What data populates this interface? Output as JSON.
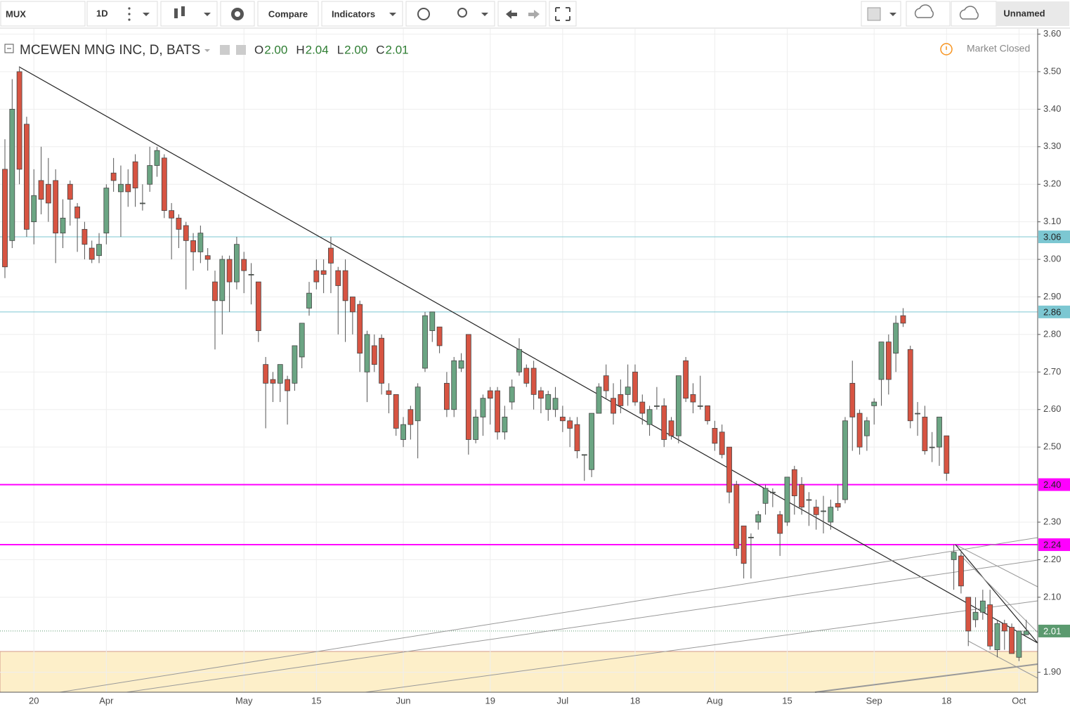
{
  "toolbar": {
    "symbol": "MUX",
    "interval": "1D",
    "compare": "Compare",
    "indicators": "Indicators",
    "layout": "Unnamed"
  },
  "chart_data": {
    "type": "candlestick",
    "title": "MCEWEN MNG INC, D, BATS",
    "ohlc_legend": [
      {
        "key": "O",
        "value": "2.00"
      },
      {
        "key": "H",
        "value": "2.04"
      },
      {
        "key": "L",
        "value": "2.00"
      },
      {
        "key": "C",
        "value": "2.01"
      }
    ],
    "status": "Market Closed",
    "up_color": "#6ba583",
    "down_color": "#d75442",
    "categories": [
      null,
      null,
      null,
      null,
      "20",
      null,
      null,
      null,
      null,
      null,
      null,
      null,
      null,
      null,
      "Apr",
      null,
      null,
      null,
      null,
      null,
      null,
      null,
      null,
      null,
      null,
      null,
      null,
      null,
      null,
      null,
      null,
      null,
      null,
      "May",
      null,
      null,
      null,
      null,
      null,
      null,
      null,
      null,
      null,
      "15",
      null,
      null,
      null,
      null,
      null,
      null,
      null,
      null,
      null,
      null,
      null,
      "Jun",
      null,
      null,
      null,
      null,
      null,
      null,
      null,
      null,
      null,
      null,
      null,
      "19",
      null,
      null,
      null,
      null,
      null,
      null,
      null,
      null,
      null,
      "Jul",
      null,
      null,
      null,
      null,
      null,
      null,
      null,
      null,
      null,
      "18",
      null,
      null,
      null,
      null,
      null,
      null,
      null,
      null,
      null,
      null,
      "Aug",
      null,
      null,
      null,
      null,
      null,
      null,
      null,
      null,
      null,
      "15",
      null,
      null,
      null,
      null,
      null,
      null,
      null,
      null,
      null,
      null,
      null,
      "Sep",
      null,
      null,
      null,
      null,
      null,
      null,
      null,
      null,
      null,
      "18",
      null,
      null,
      null,
      null,
      null,
      null,
      null,
      null,
      null,
      "Oct",
      null
    ],
    "open": [
      3.24,
      3.05,
      3.5,
      3.36,
      3.1,
      3.21,
      3.2,
      3.21,
      3.07,
      3.2,
      3.14,
      3.08,
      3.03,
      3.01,
      3.07,
      3.23,
      3.18,
      3.2,
      3.26,
      3.15,
      3.2,
      3.25,
      3.27,
      3.13,
      3.11,
      3.09,
      3.05,
      3.02,
      3.01,
      2.94,
      2.89,
      3.0,
      2.94,
      3.0,
      2.96,
      2.94,
      2.72,
      2.68,
      2.67,
      2.68,
      2.67,
      2.74,
      2.87,
      2.97,
      2.97,
      3.03,
      2.97,
      2.97,
      2.9,
      2.88,
      2.7,
      2.77,
      2.79,
      2.65,
      2.64,
      2.52,
      2.6,
      2.57,
      2.71,
      2.81,
      2.82,
      2.67,
      2.6,
      2.71,
      2.8,
      2.52,
      2.58,
      2.65,
      2.65,
      2.54,
      2.62,
      2.7,
      2.71,
      2.71,
      2.65,
      2.6,
      2.6,
      2.58,
      2.57,
      2.56,
      2.48,
      2.44,
      2.59,
      2.69,
      2.63,
      2.64,
      2.64,
      2.7,
      2.62,
      2.56,
      2.61,
      2.61,
      2.57,
      2.53,
      2.73,
      2.64,
      2.61,
      2.61,
      2.55,
      2.54,
      2.5,
      2.4,
      2.29,
      2.26,
      2.3,
      2.35,
      2.38,
      2.32,
      2.3,
      2.44,
      2.4,
      2.36,
      2.34,
      2.33,
      2.3,
      2.35,
      2.36,
      2.67,
      2.59,
      2.53,
      2.61,
      2.68,
      2.78,
      2.75,
      2.85,
      2.76,
      2.59,
      2.58,
      2.5,
      2.5,
      2.53,
      2.2,
      2.21,
      2.1,
      2.04,
      2.06,
      2.08,
      1.96,
      2.03,
      2.02,
      1.94,
      2.0
    ],
    "high": [
      3.32,
      3.48,
      3.51,
      3.38,
      3.24,
      3.3,
      3.27,
      3.24,
      3.16,
      3.21,
      3.15,
      3.1,
      3.05,
      3.07,
      3.2,
      3.27,
      3.25,
      3.24,
      3.28,
      3.2,
      3.3,
      3.3,
      3.28,
      3.15,
      3.12,
      3.1,
      3.07,
      3.09,
      3.03,
      2.97,
      3.01,
      3.01,
      3.06,
      3.02,
      2.99,
      2.94,
      2.74,
      2.7,
      2.72,
      2.69,
      2.77,
      2.83,
      2.94,
      3.0,
      3.0,
      3.06,
      2.98,
      3.0,
      2.9,
      2.89,
      2.81,
      2.8,
      2.8,
      2.67,
      2.64,
      2.58,
      2.61,
      2.67,
      2.86,
      2.86,
      2.82,
      2.7,
      2.74,
      2.75,
      2.8,
      2.6,
      2.64,
      2.66,
      2.66,
      2.61,
      2.68,
      2.79,
      2.72,
      2.73,
      2.66,
      2.65,
      2.66,
      2.61,
      2.58,
      2.58,
      2.48,
      2.59,
      2.67,
      2.72,
      2.67,
      2.68,
      2.72,
      2.72,
      2.64,
      2.61,
      2.66,
      2.63,
      2.58,
      2.69,
      2.74,
      2.67,
      2.69,
      2.61,
      2.57,
      2.56,
      2.5,
      2.41,
      2.29,
      2.27,
      2.33,
      2.4,
      2.39,
      2.33,
      2.42,
      2.45,
      2.42,
      2.38,
      2.36,
      2.37,
      2.36,
      2.4,
      2.58,
      2.73,
      2.6,
      2.58,
      2.63,
      2.78,
      2.8,
      2.85,
      2.87,
      2.77,
      2.62,
      2.61,
      2.54,
      2.58,
      2.53,
      2.24,
      2.22,
      2.1,
      2.1,
      2.12,
      2.12,
      2.04,
      2.04,
      2.03,
      2.01,
      2.04
    ],
    "low": [
      2.95,
      3.03,
      3.2,
      3.06,
      3.04,
      3.12,
      3.1,
      2.99,
      3.03,
      3.09,
      3.02,
      3.0,
      2.99,
      2.99,
      3.04,
      3.18,
      3.06,
      3.14,
      3.14,
      3.13,
      3.18,
      3.22,
      3.11,
      3.0,
      3.03,
      2.92,
      2.97,
      2.99,
      2.97,
      2.76,
      2.8,
      2.86,
      2.92,
      2.91,
      2.88,
      2.78,
      2.55,
      2.62,
      2.62,
      2.56,
      2.65,
      2.71,
      2.85,
      2.92,
      2.91,
      2.91,
      2.8,
      2.78,
      2.8,
      2.7,
      2.62,
      2.7,
      2.64,
      2.59,
      2.53,
      2.5,
      2.52,
      2.47,
      2.7,
      2.78,
      2.75,
      2.58,
      2.58,
      2.7,
      2.48,
      2.51,
      2.53,
      2.56,
      2.52,
      2.52,
      2.6,
      2.69,
      2.66,
      2.6,
      2.59,
      2.57,
      2.58,
      2.54,
      2.5,
      2.47,
      2.41,
      2.42,
      2.59,
      2.63,
      2.56,
      2.59,
      2.61,
      2.61,
      2.56,
      2.53,
      2.6,
      2.5,
      2.52,
      2.51,
      2.62,
      2.59,
      2.6,
      2.56,
      2.49,
      2.47,
      2.35,
      2.21,
      2.15,
      2.15,
      2.28,
      2.32,
      2.34,
      2.21,
      2.29,
      2.32,
      2.32,
      2.29,
      2.28,
      2.27,
      2.28,
      2.33,
      2.35,
      2.49,
      2.48,
      2.49,
      2.56,
      2.61,
      2.64,
      2.7,
      2.82,
      2.55,
      2.53,
      2.48,
      2.46,
      2.45,
      2.41,
      2.12,
      2.11,
      1.97,
      2.02,
      2.04,
      1.96,
      1.94,
      1.96,
      1.95,
      1.93,
      2.0
    ],
    "close": [
      2.98,
      3.4,
      3.24,
      3.08,
      3.17,
      3.16,
      3.15,
      3.07,
      3.11,
      3.16,
      3.11,
      3.04,
      3.0,
      3.04,
      3.19,
      3.21,
      3.2,
      3.18,
      3.19,
      3.15,
      3.25,
      3.29,
      3.13,
      3.11,
      3.08,
      3.05,
      3.02,
      3.07,
      3.0,
      2.89,
      3.0,
      2.94,
      3.04,
      2.97,
      2.96,
      2.81,
      2.67,
      2.67,
      2.72,
      2.65,
      2.77,
      2.83,
      2.91,
      2.94,
      2.96,
      2.99,
      2.93,
      2.89,
      2.86,
      2.75,
      2.8,
      2.72,
      2.67,
      2.64,
      2.55,
      2.56,
      2.56,
      2.66,
      2.85,
      2.86,
      2.77,
      2.6,
      2.73,
      2.73,
      2.52,
      2.58,
      2.63,
      2.63,
      2.54,
      2.58,
      2.66,
      2.76,
      2.67,
      2.64,
      2.63,
      2.64,
      2.63,
      2.57,
      2.55,
      2.49,
      2.48,
      2.59,
      2.66,
      2.65,
      2.59,
      2.61,
      2.66,
      2.62,
      2.59,
      2.6,
      2.61,
      2.52,
      2.53,
      2.69,
      2.63,
      2.62,
      2.61,
      2.57,
      2.51,
      2.48,
      2.38,
      2.23,
      2.19,
      2.26,
      2.32,
      2.39,
      2.38,
      2.27,
      2.42,
      2.37,
      2.34,
      2.36,
      2.32,
      2.33,
      2.34,
      2.34,
      2.57,
      2.58,
      2.5,
      2.57,
      2.62,
      2.78,
      2.68,
      2.83,
      2.83,
      2.57,
      2.59,
      2.49,
      2.5,
      2.58,
      2.43,
      2.22,
      2.13,
      2.01,
      2.06,
      2.09,
      1.97,
      2.03,
      2.01,
      1.95,
      2.01,
      2.01
    ],
    "ylim": [
      1.847,
      3.616
    ],
    "yticks": [
      {
        "value": 3.6,
        "label": "3.60"
      },
      {
        "value": 3.5,
        "label": "3.50"
      },
      {
        "value": 3.4,
        "label": "3.40"
      },
      {
        "value": 3.3,
        "label": "3.30"
      },
      {
        "value": 3.2,
        "label": "3.20"
      },
      {
        "value": 3.1,
        "label": "3.10"
      },
      {
        "value": 3.0,
        "label": "3.00"
      },
      {
        "value": 2.9,
        "label": "2.90"
      },
      {
        "value": 2.8,
        "label": "2.80"
      },
      {
        "value": 2.7,
        "label": "2.70"
      },
      {
        "value": 2.6,
        "label": "2.60"
      },
      {
        "value": 2.5,
        "label": "2.50"
      },
      {
        "value": 2.3,
        "label": "2.30"
      },
      {
        "value": 2.2,
        "label": "2.20"
      },
      {
        "value": 2.1,
        "label": "2.10"
      },
      {
        "value": 1.9,
        "label": "1.90"
      }
    ],
    "levels": [
      {
        "value": 3.06,
        "color": "#7cc7d2"
      },
      {
        "value": 2.86,
        "color": "#7cc7d2"
      },
      {
        "value": {
          "value": 2.4,
          "label": "2.40"
        },
        "color": "#ff00ff"
      },
      {
        "value": 2.24,
        "color": "#ff00ff"
      }
    ],
    "last_price_color": "#5b9a6f",
    "grid": true
  }
}
